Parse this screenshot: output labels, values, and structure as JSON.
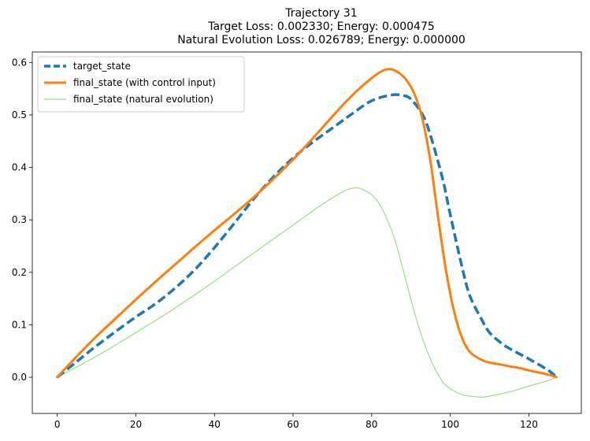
{
  "chart_data": {
    "type": "line",
    "title_lines": [
      "Trajectory 31",
      "Target Loss: 0.002330; Energy: 0.000475",
      "Natural Evolution Loss: 0.026789; Energy: 0.000000"
    ],
    "xlabel": "",
    "ylabel": "",
    "xlim": [
      -6.35,
      133.35
    ],
    "ylim": [
      -0.069,
      0.62
    ],
    "xticks": [
      0,
      20,
      40,
      60,
      80,
      100,
      120
    ],
    "xtick_labels": [
      "0",
      "20",
      "40",
      "60",
      "80",
      "100",
      "120"
    ],
    "yticks": [
      0.0,
      0.1,
      0.2,
      0.3,
      0.4,
      0.5,
      0.6
    ],
    "ytick_labels": [
      "0.0",
      "0.1",
      "0.2",
      "0.3",
      "0.4",
      "0.5",
      "0.6"
    ],
    "grid": false,
    "legend_position": "upper-left",
    "series": [
      {
        "name": "target_state",
        "color": "#1f77b4",
        "style": "dashed",
        "line_width": 3.5,
        "x": [
          0,
          5,
          10,
          15,
          20,
          25,
          30,
          35,
          40,
          45,
          50,
          55,
          60,
          65,
          70,
          75,
          80,
          85,
          88,
          90,
          93,
          95,
          98,
          100,
          103,
          105,
          108,
          110,
          113,
          115,
          118,
          120,
          125,
          127
        ],
        "y": [
          0.0,
          0.03,
          0.06,
          0.088,
          0.115,
          0.14,
          0.17,
          0.205,
          0.247,
          0.293,
          0.34,
          0.382,
          0.418,
          0.448,
          0.475,
          0.502,
          0.527,
          0.538,
          0.537,
          0.53,
          0.5,
          0.46,
          0.38,
          0.31,
          0.21,
          0.155,
          0.11,
          0.085,
          0.065,
          0.055,
          0.043,
          0.035,
          0.013,
          0.0
        ]
      },
      {
        "name": "final_state (with control input)",
        "color": "#ff7f0e",
        "style": "solid",
        "line_width": 3,
        "x": [
          0,
          5,
          10,
          15,
          20,
          25,
          30,
          35,
          40,
          45,
          50,
          55,
          60,
          65,
          70,
          75,
          80,
          83,
          85,
          87,
          89,
          91,
          93,
          95,
          97,
          99,
          101,
          103,
          105,
          108,
          110,
          113,
          115,
          118,
          120,
          125,
          127
        ],
        "y": [
          0.0,
          0.04,
          0.078,
          0.113,
          0.148,
          0.182,
          0.215,
          0.248,
          0.28,
          0.311,
          0.343,
          0.378,
          0.415,
          0.455,
          0.497,
          0.537,
          0.57,
          0.585,
          0.587,
          0.58,
          0.565,
          0.538,
          0.49,
          0.41,
          0.3,
          0.2,
          0.125,
          0.075,
          0.048,
          0.033,
          0.028,
          0.024,
          0.021,
          0.017,
          0.013,
          0.005,
          0.0
        ]
      },
      {
        "name": "final_state (natural evolution)",
        "color": "#98df8a",
        "style": "solid",
        "line_width": 1.2,
        "x": [
          0,
          10,
          20,
          30,
          40,
          50,
          60,
          65,
          70,
          73,
          75,
          77,
          80,
          82,
          84,
          86,
          88,
          90,
          92,
          94,
          96,
          98,
          100,
          103,
          105,
          108,
          110,
          115,
          120,
          125,
          127
        ],
        "y": [
          0.0,
          0.04,
          0.085,
          0.132,
          0.183,
          0.237,
          0.29,
          0.317,
          0.342,
          0.355,
          0.36,
          0.36,
          0.348,
          0.33,
          0.3,
          0.26,
          0.205,
          0.148,
          0.095,
          0.052,
          0.018,
          -0.008,
          -0.022,
          -0.033,
          -0.036,
          -0.038,
          -0.036,
          -0.028,
          -0.017,
          -0.006,
          0.0
        ]
      }
    ]
  }
}
